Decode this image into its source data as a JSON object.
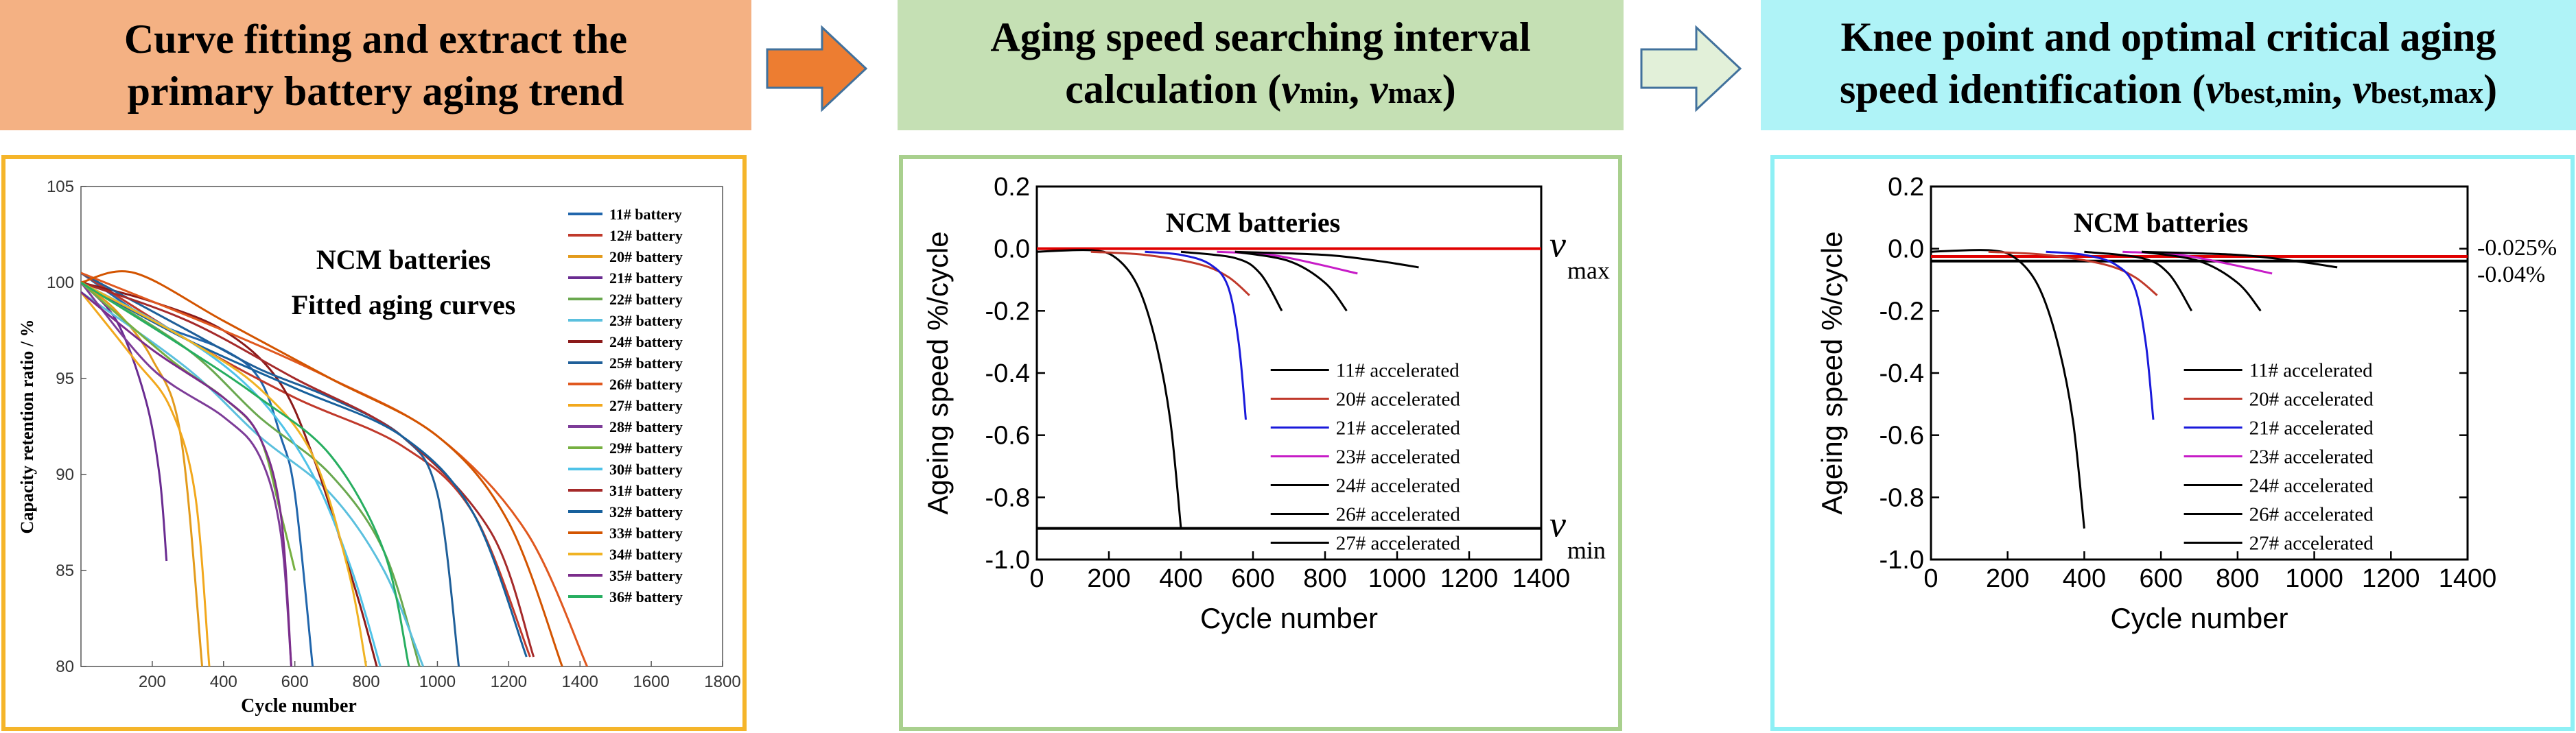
{
  "steps": [
    {
      "title_line1": "Curve fitting and extract the",
      "title_line2": "primary battery aging trend"
    },
    {
      "title_line1": "Aging speed searching interval",
      "title_line2_pre": "calculation (",
      "v": "v",
      "min_sub": "min",
      "sep": ", ",
      "max_sub": "max",
      "title_line2_post": ")"
    },
    {
      "title_line1": "Knee point and optimal critical aging",
      "title_line2_pre": "speed identification (",
      "v": "v",
      "bmin_sub": "best,min",
      "sep": ", ",
      "bmax_sub": "best,max",
      "title_line2_post": ")"
    }
  ],
  "chart_data": [
    {
      "type": "line",
      "title": "NCM batteries",
      "subtitle": "Fitted aging curves",
      "xlabel": "Cycle number",
      "ylabel": "Capacity retention ratio / %",
      "xlim": [
        0,
        1800
      ],
      "ylim": [
        80,
        105
      ],
      "xticks": [
        200,
        400,
        600,
        800,
        1000,
        1200,
        1400,
        1600,
        1800
      ],
      "yticks": [
        80,
        85,
        90,
        95,
        100,
        105
      ],
      "series": [
        {
          "name": "11# battery",
          "color": "#2166ac",
          "points": [
            [
              0,
              100.5
            ],
            [
              200,
              98
            ],
            [
              400,
              96.5
            ],
            [
              500,
              95
            ],
            [
              560,
              92
            ],
            [
              600,
              89
            ],
            [
              650,
              80
            ]
          ]
        },
        {
          "name": "12# battery",
          "color": "#c0392b",
          "points": [
            [
              0,
              100.5
            ],
            [
              300,
              97
            ],
            [
              600,
              94
            ],
            [
              900,
              91.5
            ],
            [
              1100,
              88
            ],
            [
              1260,
              80.5
            ]
          ]
        },
        {
          "name": "20# battery",
          "color": "#e39b1c",
          "points": [
            [
              0,
              100
            ],
            [
              100,
              98.5
            ],
            [
              200,
              96
            ],
            [
              280,
              92
            ],
            [
              340,
              80
            ]
          ]
        },
        {
          "name": "21# battery",
          "color": "#6a2c91",
          "points": [
            [
              0,
              100
            ],
            [
              100,
              98
            ],
            [
              180,
              94
            ],
            [
              220,
              90
            ],
            [
              240,
              85.5
            ]
          ]
        },
        {
          "name": "22# battery",
          "color": "#6aa84f",
          "points": [
            [
              0,
              100
            ],
            [
              300,
              96.5
            ],
            [
              500,
              93
            ],
            [
              700,
              90
            ],
            [
              850,
              86
            ],
            [
              950,
              80
            ]
          ]
        },
        {
          "name": "23# battery",
          "color": "#5bc0de",
          "points": [
            [
              0,
              99.5
            ],
            [
              300,
              95.5
            ],
            [
              500,
              92
            ],
            [
              700,
              89
            ],
            [
              850,
              85
            ],
            [
              960,
              80
            ]
          ]
        },
        {
          "name": "24# battery",
          "color": "#8b1a1a",
          "points": [
            [
              0,
              100
            ],
            [
              200,
              99
            ],
            [
              400,
              97.5
            ],
            [
              550,
              95
            ],
            [
              650,
              91
            ],
            [
              770,
              84
            ],
            [
              830,
              80
            ]
          ]
        },
        {
          "name": "25# battery",
          "color": "#1f5f99",
          "points": [
            [
              0,
              100.5
            ],
            [
              300,
              97.5
            ],
            [
              500,
              95.5
            ],
            [
              700,
              94
            ],
            [
              900,
              92
            ],
            [
              1000,
              89
            ],
            [
              1060,
              80
            ]
          ]
        },
        {
          "name": "26# battery",
          "color": "#e0581f",
          "points": [
            [
              0,
              100.5
            ],
            [
              400,
              97.5
            ],
            [
              700,
              95
            ],
            [
              1000,
              92
            ],
            [
              1250,
              87
            ],
            [
              1420,
              80
            ]
          ]
        },
        {
          "name": "27# battery",
          "color": "#f2a81d",
          "points": [
            [
              0,
              99.5
            ],
            [
              150,
              96
            ],
            [
              250,
              93.5
            ],
            [
              320,
              89
            ],
            [
              360,
              80
            ]
          ]
        },
        {
          "name": "28# battery",
          "color": "#7d3c98",
          "points": [
            [
              0,
              100
            ],
            [
              200,
              95.5
            ],
            [
              400,
              93
            ],
            [
              500,
              91
            ],
            [
              560,
              87
            ],
            [
              590,
              80
            ]
          ]
        },
        {
          "name": "29# battery",
          "color": "#76b041",
          "points": [
            [
              0,
              100
            ],
            [
              250,
              96
            ],
            [
              400,
              94
            ],
            [
              500,
              92
            ],
            [
              560,
              88
            ],
            [
              600,
              85
            ]
          ]
        },
        {
          "name": "30# battery",
          "color": "#4fc3e8",
          "points": [
            [
              0,
              100
            ],
            [
              300,
              97
            ],
            [
              500,
              94
            ],
            [
              650,
              90
            ],
            [
              760,
              85
            ],
            [
              840,
              80
            ]
          ]
        },
        {
          "name": "31# battery",
          "color": "#a52a2a",
          "points": [
            [
              0,
              100
            ],
            [
              300,
              98
            ],
            [
              600,
              95
            ],
            [
              900,
              92
            ],
            [
              1150,
              87
            ],
            [
              1270,
              80.5
            ]
          ]
        },
        {
          "name": "32# battery",
          "color": "#17609c",
          "points": [
            [
              0,
              100
            ],
            [
              300,
              97
            ],
            [
              600,
              94.5
            ],
            [
              900,
              92
            ],
            [
              1100,
              88
            ],
            [
              1250,
              80.5
            ]
          ]
        },
        {
          "name": "33# battery",
          "color": "#d35400",
          "points": [
            [
              0,
              100
            ],
            [
              150,
              100.5
            ],
            [
              400,
              98
            ],
            [
              700,
              95
            ],
            [
              1000,
              92
            ],
            [
              1200,
              87.5
            ],
            [
              1350,
              80
            ]
          ]
        },
        {
          "name": "34# battery",
          "color": "#f0b323",
          "points": [
            [
              0,
              100
            ],
            [
              300,
              97
            ],
            [
              500,
              94.5
            ],
            [
              650,
              91
            ],
            [
              750,
              85
            ],
            [
              800,
              80
            ]
          ]
        },
        {
          "name": "35# battery",
          "color": "#7b2d8b",
          "points": [
            [
              0,
              99.5
            ],
            [
              200,
              96.5
            ],
            [
              400,
              94
            ],
            [
              500,
              92
            ],
            [
              560,
              88
            ],
            [
              590,
              80
            ]
          ]
        },
        {
          "name": "36# battery",
          "color": "#27ae60",
          "points": [
            [
              0,
              100
            ],
            [
              300,
              96.5
            ],
            [
              500,
              94
            ],
            [
              700,
              91
            ],
            [
              850,
              86
            ],
            [
              920,
              80
            ]
          ]
        }
      ]
    },
    {
      "type": "line",
      "title": "NCM batteries",
      "xlabel": "Cycle number",
      "ylabel": "Ageing speed %/cycle",
      "xlim": [
        0,
        1400
      ],
      "ylim": [
        -1.0,
        0.2
      ],
      "xticks": [
        0,
        200,
        400,
        600,
        800,
        1000,
        1200,
        1400
      ],
      "yticks": [
        0.2,
        0.0,
        -0.2,
        -0.4,
        -0.6,
        -0.8,
        -1.0
      ],
      "ytick_labels": [
        "0.2",
        "0.0",
        "-0.2",
        "-0.4",
        "-0.6",
        "-0.8",
        "-1.0"
      ],
      "hlines": [
        {
          "y": 0.0,
          "color": "#e00000",
          "label_v": "v",
          "label_sub": "max"
        },
        {
          "y": -0.9,
          "color": "#000000",
          "label_v": "v",
          "label_sub": "min"
        }
      ],
      "series": [
        {
          "name": "11# accelerated",
          "color": "#000000",
          "points": [
            [
              0,
              -0.01
            ],
            [
              150,
              -0.005
            ],
            [
              220,
              -0.03
            ],
            [
              280,
              -0.12
            ],
            [
              330,
              -0.3
            ],
            [
              370,
              -0.55
            ],
            [
              400,
              -0.9
            ]
          ]
        },
        {
          "name": "20# accelerated",
          "color": "#c0392b",
          "points": [
            [
              150,
              -0.01
            ],
            [
              300,
              -0.02
            ],
            [
              450,
              -0.05
            ],
            [
              530,
              -0.09
            ],
            [
              590,
              -0.15
            ]
          ]
        },
        {
          "name": "21# accelerated",
          "color": "#1a1adb",
          "points": [
            [
              300,
              -0.01
            ],
            [
              400,
              -0.02
            ],
            [
              480,
              -0.05
            ],
            [
              530,
              -0.12
            ],
            [
              560,
              -0.3
            ],
            [
              580,
              -0.55
            ]
          ]
        },
        {
          "name": "23# accelerated",
          "color": "#c71cc7",
          "points": [
            [
              500,
              -0.01
            ],
            [
              650,
              -0.02
            ],
            [
              780,
              -0.05
            ],
            [
              890,
              -0.08
            ]
          ]
        },
        {
          "name": "24# accelerated",
          "color": "#000000",
          "points": [
            [
              400,
              -0.01
            ],
            [
              550,
              -0.03
            ],
            [
              620,
              -0.08
            ],
            [
              680,
              -0.2
            ]
          ]
        },
        {
          "name": "26# accelerated",
          "color": "#000000",
          "points": [
            [
              550,
              -0.01
            ],
            [
              700,
              -0.04
            ],
            [
              800,
              -0.11
            ],
            [
              860,
              -0.2
            ]
          ]
        },
        {
          "name": "27# accelerated",
          "color": "#000000",
          "points": [
            [
              550,
              -0.01
            ],
            [
              800,
              -0.02
            ],
            [
              950,
              -0.04
            ],
            [
              1060,
              -0.06
            ]
          ]
        }
      ]
    },
    {
      "type": "line",
      "title": "NCM batteries",
      "xlabel": "Cycle number",
      "ylabel": "Ageing speed %/cycle",
      "xlim": [
        0,
        1400
      ],
      "ylim": [
        -1.0,
        0.2
      ],
      "xticks": [
        0,
        200,
        400,
        600,
        800,
        1000,
        1200,
        1400
      ],
      "yticks": [
        0.2,
        0.0,
        -0.2,
        -0.4,
        -0.6,
        -0.8,
        -1.0
      ],
      "ytick_labels": [
        "0.2",
        "0.0",
        "-0.2",
        "-0.4",
        "-0.6",
        "-0.8",
        "-1.0"
      ],
      "hlines": [
        {
          "y": -0.025,
          "color": "#e00000",
          "label": "-0.025%"
        },
        {
          "y": -0.04,
          "color": "#000000",
          "label": "-0.04%"
        }
      ],
      "series": [
        {
          "name": "11# accelerated",
          "color": "#000000",
          "points": [
            [
              0,
              -0.01
            ],
            [
              150,
              -0.005
            ],
            [
              220,
              -0.03
            ],
            [
              280,
              -0.12
            ],
            [
              330,
              -0.3
            ],
            [
              370,
              -0.55
            ],
            [
              400,
              -0.9
            ]
          ]
        },
        {
          "name": "20# accelerated",
          "color": "#c0392b",
          "points": [
            [
              150,
              -0.01
            ],
            [
              300,
              -0.02
            ],
            [
              450,
              -0.05
            ],
            [
              530,
              -0.09
            ],
            [
              590,
              -0.15
            ]
          ]
        },
        {
          "name": "21# accelerated",
          "color": "#1a1adb",
          "points": [
            [
              300,
              -0.01
            ],
            [
              400,
              -0.02
            ],
            [
              480,
              -0.05
            ],
            [
              530,
              -0.12
            ],
            [
              560,
              -0.3
            ],
            [
              580,
              -0.55
            ]
          ]
        },
        {
          "name": "23# accelerated",
          "color": "#c71cc7",
          "points": [
            [
              500,
              -0.01
            ],
            [
              650,
              -0.02
            ],
            [
              780,
              -0.05
            ],
            [
              890,
              -0.08
            ]
          ]
        },
        {
          "name": "24# accelerated",
          "color": "#000000",
          "points": [
            [
              400,
              -0.01
            ],
            [
              550,
              -0.03
            ],
            [
              620,
              -0.08
            ],
            [
              680,
              -0.2
            ]
          ]
        },
        {
          "name": "26# accelerated",
          "color": "#000000",
          "points": [
            [
              550,
              -0.01
            ],
            [
              700,
              -0.04
            ],
            [
              800,
              -0.11
            ],
            [
              860,
              -0.2
            ]
          ]
        },
        {
          "name": "27# accelerated",
          "color": "#000000",
          "points": [
            [
              550,
              -0.01
            ],
            [
              800,
              -0.02
            ],
            [
              950,
              -0.04
            ],
            [
              1060,
              -0.06
            ]
          ]
        }
      ]
    }
  ],
  "colors": {
    "step1": "#f4b183",
    "step2": "#c5e0b4",
    "step3": "#aff3f7",
    "arrow1": "#ed7d31",
    "arrow2": "#e2f0d9"
  }
}
